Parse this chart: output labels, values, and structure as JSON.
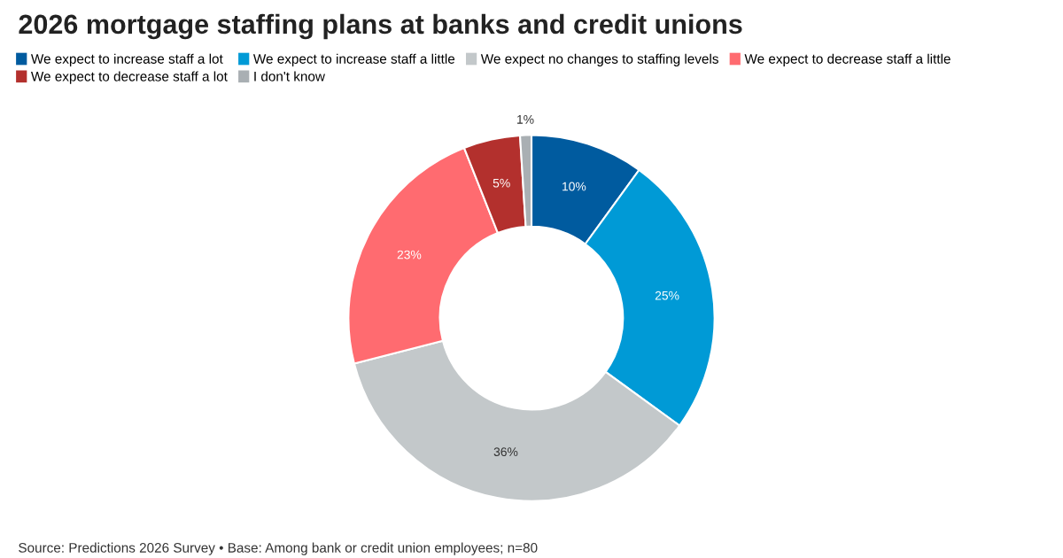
{
  "chart_data": {
    "type": "donut",
    "title": "2026 mortgage staffing plans at banks and credit unions",
    "categories": [
      "We expect to increase staff a lot",
      "We expect to increase staff a little",
      "We expect no changes to staffing levels",
      "We expect to decrease staff a little",
      "We expect to decrease staff a lot",
      "I don't know"
    ],
    "values": [
      10,
      25,
      36,
      23,
      5,
      1
    ],
    "colors": [
      "#005b9f",
      "#009ad6",
      "#c3c8ca",
      "#ff6b70",
      "#b3302d",
      "#a9afb3"
    ],
    "value_labels": [
      "10%",
      "25%",
      "36%",
      "23%",
      "5%",
      "1%"
    ],
    "legend": "top",
    "annotations": [
      "Source: Predictions 2026 Survey • Base: Among bank or credit union employees; n=80"
    ]
  }
}
